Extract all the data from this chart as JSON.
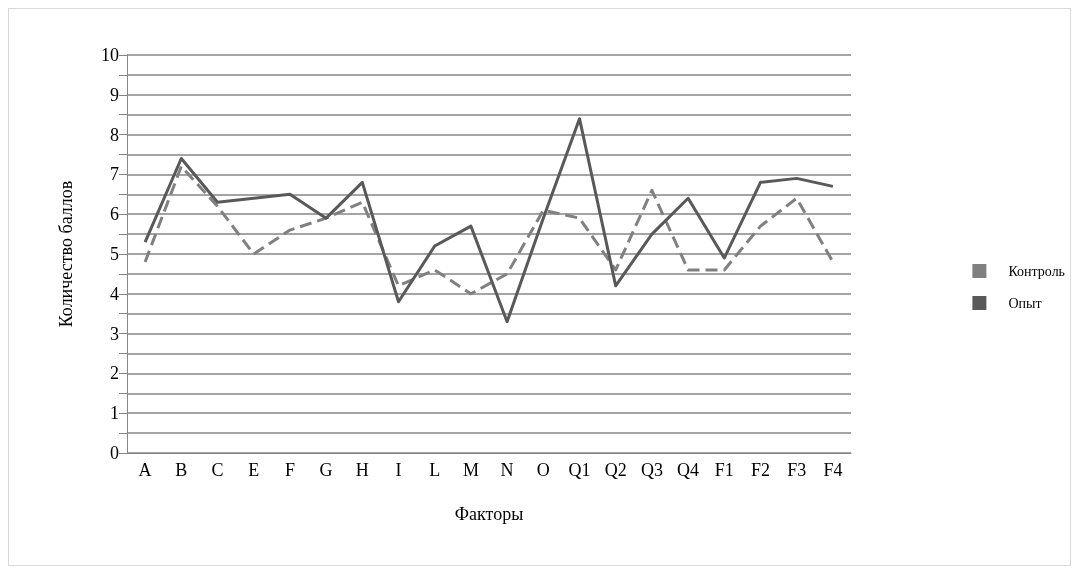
{
  "chart_data": {
    "type": "line",
    "xlabel": "Факторы",
    "ylabel": "Количество баллов",
    "categories": [
      "A",
      "B",
      "C",
      "E",
      "F",
      "G",
      "H",
      "I",
      "L",
      "M",
      "N",
      "O",
      "Q1",
      "Q2",
      "Q3",
      "Q4",
      "F1",
      "F2",
      "F3",
      "F4"
    ],
    "series": [
      {
        "name": "Контроль",
        "color": "#808080",
        "line_style": "dashed",
        "values": [
          4.8,
          7.2,
          6.2,
          5.0,
          5.6,
          5.9,
          6.3,
          4.2,
          4.6,
          4.0,
          4.5,
          6.1,
          5.9,
          4.6,
          6.6,
          4.6,
          4.6,
          5.7,
          6.4,
          4.8
        ]
      },
      {
        "name": "Опыт",
        "color": "#595959",
        "line_style": "solid",
        "values": [
          5.3,
          7.4,
          6.3,
          6.4,
          6.5,
          5.9,
          6.8,
          3.8,
          5.2,
          5.7,
          3.3,
          5.9,
          8.4,
          4.2,
          5.5,
          6.4,
          4.9,
          6.8,
          6.9,
          6.7
        ]
      }
    ],
    "ylim": [
      0,
      10
    ],
    "yticks": [
      0,
      1,
      2,
      3,
      4,
      5,
      6,
      7,
      8,
      9,
      10
    ],
    "grid": "y",
    "legend": "right",
    "marker": "none"
  }
}
